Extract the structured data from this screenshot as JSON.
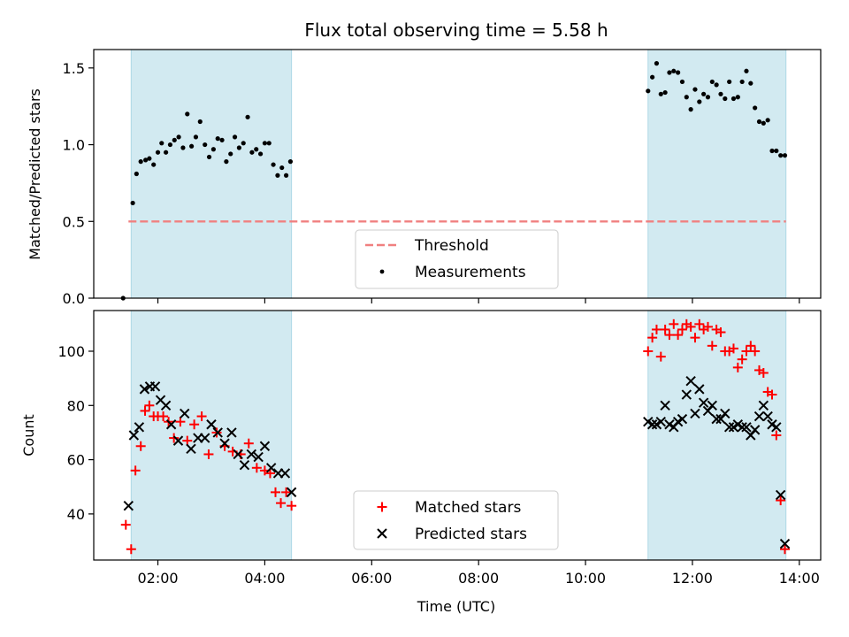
{
  "chart_data": {
    "title": "Flux total observing time = 5.58 h",
    "xlabel": "Time (UTC)",
    "xlim": [
      0.8,
      14.4
    ],
    "x_ticks": [
      2,
      4,
      6,
      8,
      10,
      12,
      14
    ],
    "x_tick_labels": [
      "02:00",
      "04:00",
      "06:00",
      "08:00",
      "10:00",
      "12:00",
      "14:00"
    ],
    "shaded_intervals": [
      [
        1.5,
        4.5
      ],
      [
        11.17,
        13.75
      ]
    ],
    "shade_color": "#add8e6",
    "panels": [
      {
        "type": "scatter",
        "ylabel": "Matched/Predicted stars",
        "ylim": [
          0,
          1.62
        ],
        "y_ticks": [
          0.0,
          0.5,
          1.0,
          1.5
        ],
        "y_tick_labels": [
          "0.0",
          "0.5",
          "1.0",
          "1.5"
        ],
        "legend_position": "lower-center",
        "threshold": {
          "name": "Threshold",
          "y": 0.5,
          "x_range": [
            1.45,
            13.75
          ],
          "color": "#f08080",
          "style": "dashed"
        },
        "series": [
          {
            "name": "Measurements",
            "marker": "dot",
            "color": "#000000",
            "x": [
              1.35,
              1.53,
              1.6,
              1.68,
              1.77,
              1.84,
              1.92,
              2.0,
              2.07,
              2.15,
              2.23,
              2.31,
              2.39,
              2.47,
              2.55,
              2.63,
              2.71,
              2.79,
              2.88,
              2.96,
              3.04,
              3.12,
              3.2,
              3.28,
              3.36,
              3.44,
              3.52,
              3.6,
              3.68,
              3.76,
              3.84,
              3.92,
              4.0,
              4.08,
              4.16,
              4.24,
              4.32,
              4.4,
              4.48,
              11.17,
              11.25,
              11.33,
              11.41,
              11.49,
              11.57,
              11.65,
              11.73,
              11.81,
              11.89,
              11.97,
              12.05,
              12.13,
              12.21,
              12.29,
              12.37,
              12.45,
              12.53,
              12.61,
              12.69,
              12.77,
              12.85,
              12.93,
              13.01,
              13.09,
              13.17,
              13.25,
              13.33,
              13.41,
              13.49,
              13.57,
              13.65,
              13.73
            ],
            "y": [
              0.0,
              0.62,
              0.81,
              0.89,
              0.9,
              0.91,
              0.87,
              0.95,
              1.01,
              0.95,
              1.0,
              1.03,
              1.05,
              0.98,
              1.2,
              0.99,
              1.05,
              1.15,
              1.0,
              0.92,
              0.97,
              1.04,
              1.03,
              0.89,
              0.94,
              1.05,
              0.98,
              1.01,
              1.18,
              0.95,
              0.97,
              0.94,
              1.01,
              1.01,
              0.87,
              0.8,
              0.85,
              0.8,
              0.89,
              1.35,
              1.44,
              1.53,
              1.33,
              1.34,
              1.47,
              1.48,
              1.47,
              1.41,
              1.31,
              1.23,
              1.36,
              1.28,
              1.33,
              1.31,
              1.41,
              1.39,
              1.33,
              1.3,
              1.41,
              1.3,
              1.31,
              1.41,
              1.48,
              1.4,
              1.24,
              1.15,
              1.14,
              1.16,
              0.96,
              0.96,
              0.93,
              0.93
            ]
          }
        ]
      },
      {
        "type": "scatter",
        "ylabel": "Count",
        "ylim": [
          23,
          115
        ],
        "y_ticks": [
          40,
          60,
          80,
          100
        ],
        "y_tick_labels": [
          "40",
          "60",
          "80",
          "100"
        ],
        "legend_position": "lower-center",
        "series": [
          {
            "name": "Matched stars",
            "marker": "plus",
            "color": "#ff0000",
            "x": [
              1.4,
              1.5,
              1.58,
              1.68,
              1.76,
              1.84,
              1.92,
              2.0,
              2.1,
              2.2,
              2.3,
              2.42,
              2.55,
              2.68,
              2.82,
              2.95,
              3.1,
              3.25,
              3.4,
              3.55,
              3.7,
              3.85,
              4.0,
              4.1,
              4.2,
              4.3,
              4.4,
              4.5,
              11.17,
              11.25,
              11.33,
              11.41,
              11.49,
              11.57,
              11.65,
              11.73,
              11.81,
              11.89,
              11.97,
              12.05,
              12.13,
              12.21,
              12.29,
              12.37,
              12.45,
              12.53,
              12.61,
              12.69,
              12.77,
              12.85,
              12.93,
              13.01,
              13.09,
              13.17,
              13.25,
              13.33,
              13.41,
              13.49,
              13.57,
              13.65,
              13.73
            ],
            "y": [
              36,
              27,
              56,
              65,
              78,
              80,
              76,
              76,
              76,
              74,
              68,
              74,
              67,
              73,
              76,
              62,
              70,
              65,
              63,
              62,
              66,
              57,
              56,
              55,
              48,
              44,
              48,
              43,
              100,
              105,
              108,
              98,
              108,
              106,
              110,
              106,
              108,
              110,
              109,
              105,
              110,
              108,
              109,
              102,
              108,
              107,
              100,
              100,
              101,
              94,
              97,
              100,
              102,
              100,
              93,
              92,
              85,
              84,
              69,
              45,
              27
            ]
          },
          {
            "name": "Predicted stars",
            "marker": "x",
            "color": "#000000",
            "x": [
              1.45,
              1.55,
              1.65,
              1.75,
              1.85,
              1.95,
              2.05,
              2.15,
              2.25,
              2.38,
              2.5,
              2.62,
              2.75,
              2.88,
              3.0,
              3.12,
              3.25,
              3.38,
              3.5,
              3.62,
              3.75,
              3.88,
              4.0,
              4.12,
              4.25,
              4.38,
              4.5,
              11.17,
              11.25,
              11.33,
              11.41,
              11.49,
              11.57,
              11.65,
              11.73,
              11.81,
              11.89,
              11.97,
              12.05,
              12.13,
              12.21,
              12.29,
              12.37,
              12.45,
              12.53,
              12.61,
              12.69,
              12.77,
              12.85,
              12.93,
              13.01,
              13.09,
              13.17,
              13.25,
              13.33,
              13.41,
              13.49,
              13.57,
              13.65,
              13.73
            ],
            "y": [
              43,
              69,
              72,
              86,
              87,
              87,
              82,
              80,
              73,
              67,
              77,
              64,
              68,
              68,
              73,
              70,
              66,
              70,
              62,
              58,
              62,
              61,
              65,
              57,
              55,
              55,
              48,
              74,
              73,
              73,
              74,
              80,
              73,
              72,
              74,
              75,
              84,
              89,
              77,
              86,
              81,
              78,
              80,
              75,
              75,
              77,
              72,
              72,
              73,
              72,
              72,
              69,
              71,
              76,
              80,
              76,
              73,
              72,
              47,
              29
            ]
          }
        ]
      }
    ]
  }
}
